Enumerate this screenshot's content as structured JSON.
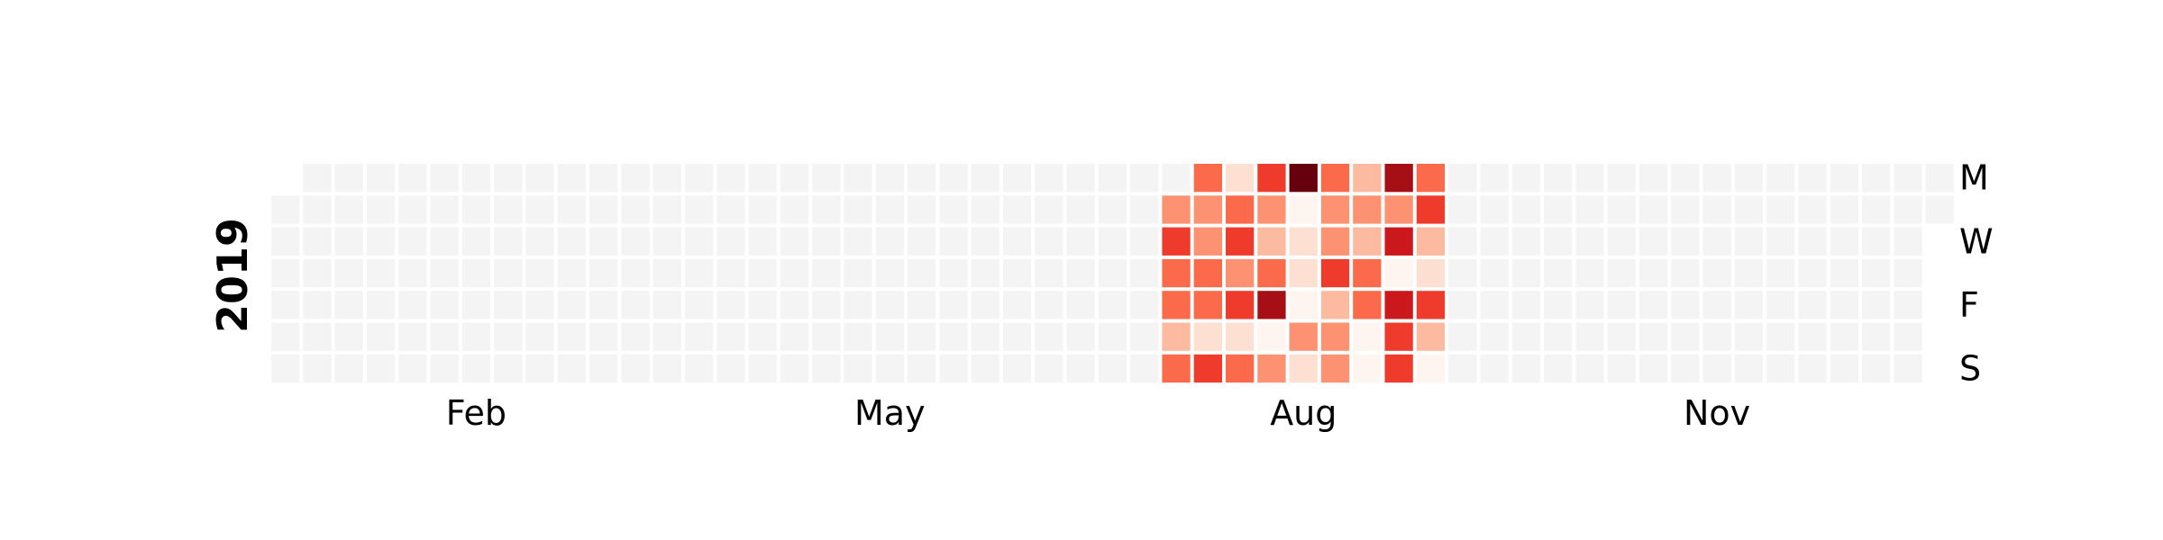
{
  "chart_data": {
    "type": "heatmap",
    "title": "",
    "year_label": "2019",
    "x_tick_labels": [
      {
        "label": "Feb",
        "week": 6
      },
      {
        "label": "May",
        "week": 19
      },
      {
        "label": "Aug",
        "week": 32
      },
      {
        "label": "Nov",
        "week": 45
      }
    ],
    "y_tick_labels": [
      {
        "label": "M",
        "day": 0
      },
      {
        "label": "W",
        "day": 2
      },
      {
        "label": "F",
        "day": 4
      },
      {
        "label": "S",
        "day": 6
      }
    ],
    "first_weekday_index": 1,
    "days_in_year": 365,
    "active_weeks_start": 28,
    "active_weeks": [
      [
        null,
        3,
        5,
        4,
        4,
        2,
        4
      ],
      [
        4,
        3,
        3,
        4,
        4,
        1,
        5
      ],
      [
        1,
        4,
        5,
        3,
        5,
        1,
        4
      ],
      [
        5,
        3,
        2,
        4,
        7,
        0,
        3
      ],
      [
        8,
        0,
        1,
        1,
        0,
        3,
        1
      ],
      [
        4,
        3,
        3,
        5,
        2,
        3,
        3
      ],
      [
        2,
        3,
        2,
        4,
        4,
        0,
        0
      ],
      [
        7,
        3,
        6,
        0,
        6,
        5,
        5
      ],
      [
        4,
        5,
        2,
        1,
        5,
        2,
        0
      ]
    ],
    "value_range": [
      0,
      8
    ],
    "colormap": [
      "#fff5f0",
      "#fee0d2",
      "#fcbba1",
      "#fc9272",
      "#fb6a4a",
      "#ef3b2c",
      "#cb181d",
      "#a50f15",
      "#67000d"
    ],
    "empty_color": "#f4f4f4",
    "grid": false,
    "legend": "none"
  }
}
